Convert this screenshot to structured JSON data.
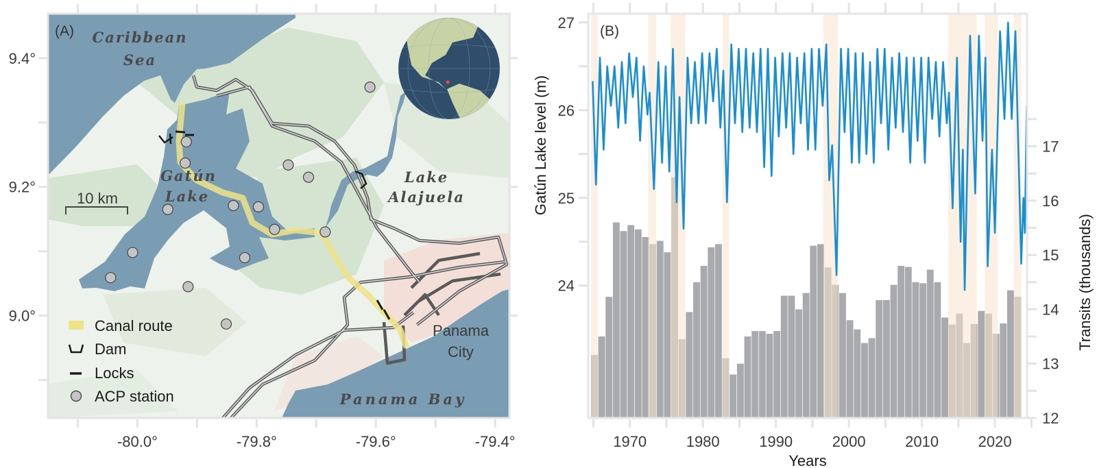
{
  "map": {
    "panel_label": "(A)",
    "labels": {
      "caribbean_1": "Caribbean",
      "caribbean_2": "Sea",
      "gatun_1": "Gatún",
      "gatun_2": "Lake",
      "alajuela_1": "Lake",
      "alajuela_2": "Alajuela",
      "panama_bay": "Panama Bay",
      "city_1": "Panama",
      "city_2": "City"
    },
    "scale_bar": "10 km",
    "legend": [
      {
        "label": "Canal route",
        "icon": "canal-route-swatch"
      },
      {
        "label": "Dam",
        "icon": "dam-icon"
      },
      {
        "label": "Locks",
        "icon": "locks-icon"
      },
      {
        "label": "ACP station",
        "icon": "station-circle-icon"
      }
    ],
    "lon_range": [
      -80.15,
      -79.376
    ],
    "lat_range": [
      8.841,
      9.469
    ],
    "lon_ticks": [
      {
        "value": -80.0,
        "label": "-80.0°"
      },
      {
        "value": -79.8,
        "label": "-79.8°"
      },
      {
        "value": -79.6,
        "label": "-79.6°"
      },
      {
        "value": -79.4,
        "label": "-79.4°"
      }
    ],
    "lat_ticks": [
      {
        "value": 9.4,
        "label": "9.4°"
      },
      {
        "value": 9.2,
        "label": "9.2°"
      },
      {
        "value": 9.0,
        "label": "9.0°"
      }
    ],
    "stations": [
      {
        "lon": -79.61,
        "lat": 9.355
      },
      {
        "lon": -79.918,
        "lat": 9.27
      },
      {
        "lon": -79.92,
        "lat": 9.237
      },
      {
        "lon": -79.747,
        "lat": 9.234
      },
      {
        "lon": -79.713,
        "lat": 9.215
      },
      {
        "lon": -79.949,
        "lat": 9.165
      },
      {
        "lon": -79.839,
        "lat": 9.171
      },
      {
        "lon": -79.797,
        "lat": 9.169
      },
      {
        "lon": -79.77,
        "lat": 9.134
      },
      {
        "lon": -79.685,
        "lat": 9.13
      },
      {
        "lon": -80.008,
        "lat": 9.098
      },
      {
        "lon": -79.82,
        "lat": 9.09
      },
      {
        "lon": -80.045,
        "lat": 9.059
      },
      {
        "lon": -79.915,
        "lat": 9.045
      },
      {
        "lon": -79.851,
        "lat": 8.987
      }
    ],
    "colors": {
      "water": "#7a9db3",
      "land": "#eef2ec",
      "forest": "#cfe0cb",
      "canal": "#efe38a",
      "road": "#555555",
      "station": "#c4c4c4",
      "urban": "#f3dcd6"
    }
  },
  "chart_data": {
    "type": "bar+line",
    "panel_label": "(B)",
    "xlabel": "Years",
    "ylabel_left": "Gatún Lake level (m)",
    "ylabel_right": "Transits (thousands)",
    "xlim": [
      1964.3,
      2024.4
    ],
    "ylim_left": [
      22.49,
      27.1
    ],
    "ylim_right": [
      12,
      19.44
    ],
    "x_ticks": [
      1970,
      1980,
      1990,
      2000,
      2010,
      2020
    ],
    "left_ticks": [
      24,
      25,
      26,
      27
    ],
    "right_ticks": [
      12,
      13,
      14,
      15,
      16,
      17
    ],
    "grid": false,
    "colors": {
      "bars": "#a9aaae",
      "line": "#1a8fd0",
      "shading": "#f7e3cc"
    },
    "shaded_periods": [
      [
        1964.7,
        1965.6
      ],
      [
        1972.5,
        1973.6
      ],
      [
        1975.6,
        1977.6
      ],
      [
        1982.7,
        1983.6
      ],
      [
        1996.5,
        1998.5
      ],
      [
        2013.6,
        2017.5
      ],
      [
        2018.6,
        2020.4
      ],
      [
        2022.6,
        2023.6
      ]
    ],
    "transits": {
      "axis": "right",
      "years": [
        1965,
        1966,
        1967,
        1968,
        1969,
        1970,
        1971,
        1972,
        1973,
        1974,
        1975,
        1976,
        1977,
        1978,
        1979,
        1980,
        1981,
        1982,
        1983,
        1984,
        1985,
        1986,
        1987,
        1988,
        1989,
        1990,
        1991,
        1992,
        1993,
        1994,
        1995,
        1996,
        1997,
        1998,
        1999,
        2000,
        2001,
        2002,
        2003,
        2004,
        2005,
        2006,
        2007,
        2008,
        2009,
        2010,
        2011,
        2012,
        2013,
        2014,
        2015,
        2016,
        2017,
        2018,
        2019,
        2020,
        2021,
        2022,
        2023
      ],
      "values": [
        13.16,
        13.5,
        14.23,
        15.6,
        15.44,
        15.55,
        15.47,
        15.33,
        15.2,
        15.26,
        15.05,
        16.43,
        13.45,
        13.95,
        14.5,
        14.8,
        15.14,
        15.2,
        13.1,
        12.8,
        13.0,
        13.5,
        13.6,
        13.6,
        13.55,
        13.6,
        14.25,
        14.25,
        14.0,
        14.3,
        15.17,
        15.2,
        14.77,
        14.45,
        14.3,
        13.8,
        13.63,
        13.38,
        13.47,
        14.17,
        14.17,
        14.45,
        14.8,
        14.78,
        14.5,
        14.48,
        14.73,
        14.5,
        13.85,
        13.72,
        13.92,
        13.38,
        13.73,
        13.97,
        13.92,
        13.55,
        13.74,
        14.35,
        14.23
      ]
    },
    "lake_level": {
      "axis": "left",
      "points": [
        [
          1964.9,
          26.33
        ],
        [
          1965.35,
          25.15
        ],
        [
          1965.9,
          26.6
        ],
        [
          1966.4,
          25.55
        ],
        [
          1966.9,
          26.5
        ],
        [
          1967.4,
          26.05
        ],
        [
          1967.9,
          26.5
        ],
        [
          1968.4,
          25.8
        ],
        [
          1968.9,
          26.55
        ],
        [
          1969.4,
          25.85
        ],
        [
          1969.9,
          26.65
        ],
        [
          1970.4,
          26.15
        ],
        [
          1970.9,
          26.6
        ],
        [
          1971.4,
          25.65
        ],
        [
          1971.9,
          26.5
        ],
        [
          1972.4,
          25.95
        ],
        [
          1972.7,
          26.2
        ],
        [
          1973.3,
          25.1
        ],
        [
          1973.9,
          26.55
        ],
        [
          1974.4,
          25.4
        ],
        [
          1974.9,
          26.5
        ],
        [
          1975.4,
          25.3
        ],
        [
          1975.9,
          26.7
        ],
        [
          1976.4,
          24.95
        ],
        [
          1976.8,
          26.15
        ],
        [
          1977.35,
          24.65
        ],
        [
          1977.9,
          26.6
        ],
        [
          1978.4,
          25.85
        ],
        [
          1978.9,
          26.55
        ],
        [
          1979.4,
          25.85
        ],
        [
          1979.9,
          26.65
        ],
        [
          1980.4,
          25.85
        ],
        [
          1980.9,
          26.65
        ],
        [
          1981.4,
          26.1
        ],
        [
          1981.9,
          26.7
        ],
        [
          1982.4,
          25.8
        ],
        [
          1982.8,
          26.45
        ],
        [
          1983.3,
          24.95
        ],
        [
          1983.9,
          26.75
        ],
        [
          1984.4,
          25.85
        ],
        [
          1984.9,
          26.7
        ],
        [
          1985.4,
          25.75
        ],
        [
          1985.9,
          26.7
        ],
        [
          1986.4,
          25.8
        ],
        [
          1986.9,
          26.65
        ],
        [
          1987.4,
          25.75
        ],
        [
          1987.9,
          26.7
        ],
        [
          1988.4,
          25.35
        ],
        [
          1988.9,
          26.7
        ],
        [
          1989.4,
          25.25
        ],
        [
          1989.9,
          26.6
        ],
        [
          1990.4,
          25.7
        ],
        [
          1990.9,
          26.65
        ],
        [
          1991.4,
          25.8
        ],
        [
          1991.9,
          26.65
        ],
        [
          1992.4,
          25.5
        ],
        [
          1992.9,
          26.6
        ],
        [
          1993.4,
          25.85
        ],
        [
          1993.9,
          26.65
        ],
        [
          1994.4,
          25.55
        ],
        [
          1994.9,
          26.7
        ],
        [
          1995.4,
          25.55
        ],
        [
          1995.9,
          26.7
        ],
        [
          1996.4,
          26.05
        ],
        [
          1996.9,
          26.75
        ],
        [
          1997.3,
          25.2
        ],
        [
          1997.7,
          25.6
        ],
        [
          1998.3,
          24.12
        ],
        [
          1998.9,
          26.7
        ],
        [
          1999.4,
          25.75
        ],
        [
          1999.9,
          26.7
        ],
        [
          2000.4,
          25.4
        ],
        [
          2000.9,
          26.65
        ],
        [
          2001.4,
          25.4
        ],
        [
          2001.9,
          26.65
        ],
        [
          2002.4,
          25.5
        ],
        [
          2002.9,
          26.55
        ],
        [
          2003.4,
          25.4
        ],
        [
          2003.9,
          26.7
        ],
        [
          2004.4,
          25.85
        ],
        [
          2004.9,
          26.7
        ],
        [
          2005.4,
          25.55
        ],
        [
          2005.9,
          26.6
        ],
        [
          2006.4,
          25.8
        ],
        [
          2006.9,
          26.65
        ],
        [
          2007.4,
          25.75
        ],
        [
          2007.9,
          26.6
        ],
        [
          2008.4,
          25.4
        ],
        [
          2008.9,
          26.6
        ],
        [
          2009.4,
          25.65
        ],
        [
          2009.9,
          26.6
        ],
        [
          2010.4,
          25.4
        ],
        [
          2010.9,
          26.6
        ],
        [
          2011.4,
          25.9
        ],
        [
          2011.9,
          26.55
        ],
        [
          2012.4,
          25.7
        ],
        [
          2012.9,
          26.55
        ],
        [
          2013.4,
          25.85
        ],
        [
          2013.7,
          26.2
        ],
        [
          2014.2,
          24.88
        ],
        [
          2014.8,
          26.6
        ],
        [
          2015.3,
          24.5
        ],
        [
          2015.6,
          25.55
        ],
        [
          2015.85,
          23.95
        ],
        [
          2016.6,
          26.85
        ],
        [
          2017.3,
          25.05
        ],
        [
          2017.8,
          26.85
        ],
        [
          2018.3,
          25.65
        ],
        [
          2018.7,
          26.6
        ],
        [
          2019.0,
          24.22
        ],
        [
          2019.6,
          25.55
        ],
        [
          2020.0,
          24.6
        ],
        [
          2020.7,
          26.9
        ],
        [
          2021.3,
          25.9
        ],
        [
          2021.8,
          27.0
        ],
        [
          2022.3,
          25.9
        ],
        [
          2022.8,
          26.9
        ],
        [
          2023.6,
          24.25
        ],
        [
          2023.9,
          25.0
        ],
        [
          2024.1,
          24.6
        ],
        [
          2024.35,
          26.05
        ]
      ]
    }
  }
}
